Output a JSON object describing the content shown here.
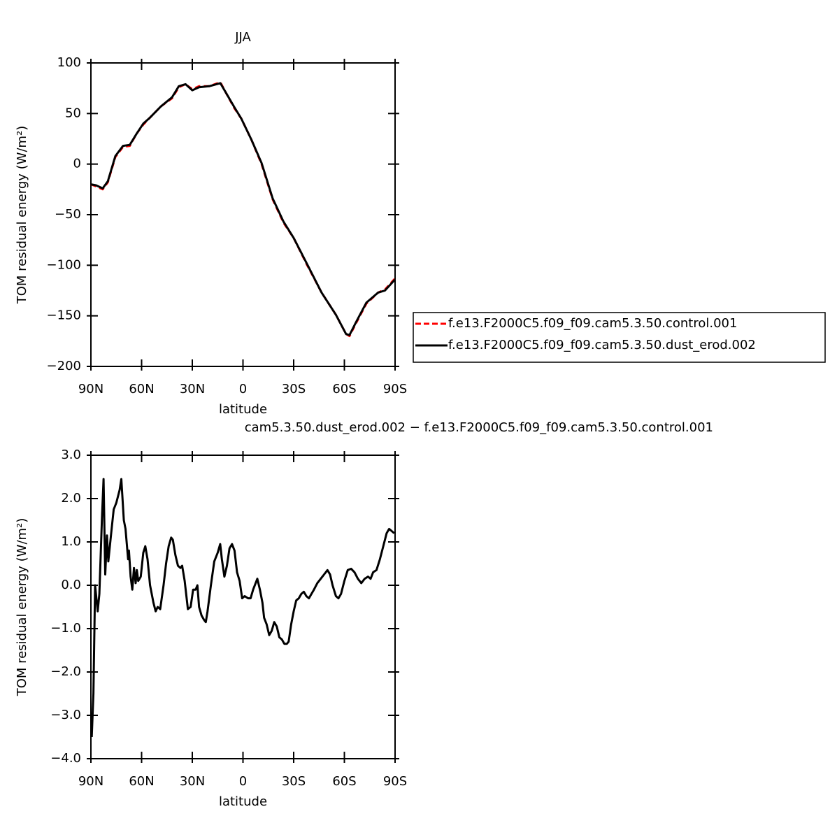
{
  "chart_data": [
    {
      "type": "line",
      "title": "JJA",
      "xlabel": "latitude",
      "ylabel": "TOM residual energy (W/m²)",
      "x": [
        90,
        87,
        83,
        80,
        75.5,
        71,
        67,
        63,
        59,
        55,
        48.6,
        42,
        38,
        34,
        30,
        26,
        20,
        13.4,
        10.6,
        5,
        1,
        -5,
        -11,
        -17.6,
        -24,
        -30,
        -38,
        -46.5,
        -55,
        -61,
        -63,
        -67,
        -73,
        -80,
        -84,
        -90
      ],
      "series": [
        {
          "name": "f.e13.F2000C5.f09_f09.cam5.3.50.control.001",
          "color": "#ff0000",
          "dash": true,
          "values": [
            -20,
            -22,
            -25,
            -18,
            7,
            17,
            18,
            30,
            39,
            46,
            57,
            65,
            76,
            79,
            74,
            77,
            77,
            81,
            72,
            55,
            45,
            24,
            0,
            -35,
            -58,
            -73,
            -100,
            -127,
            -149,
            -168,
            -170,
            -157,
            -138,
            -127,
            -124,
            -113
          ]
        },
        {
          "name": "f.e13.F2000C5.f09_f09.cam5.3.50.dust_erod.002",
          "color": "#000000",
          "dash": false,
          "values": [
            -20,
            -21,
            -24,
            -17,
            8,
            18,
            19,
            30,
            40,
            46,
            57,
            66,
            77,
            79,
            73,
            76,
            77,
            80,
            72,
            56,
            45,
            24,
            1,
            -34,
            -57,
            -73,
            -99,
            -127,
            -149,
            -168,
            -169,
            -156,
            -137,
            -127,
            -125,
            -114
          ]
        }
      ],
      "xlim": [
        90,
        -90
      ],
      "xticks": [
        {
          "value": 90,
          "label": "90N"
        },
        {
          "value": 60,
          "label": "60N"
        },
        {
          "value": 30,
          "label": "30N"
        },
        0,
        {
          "value": -30,
          "label": "30S"
        },
        {
          "value": -60,
          "label": "60S"
        },
        {
          "value": -90,
          "label": "90S"
        }
      ],
      "ylim": [
        -200,
        100
      ],
      "yticks": [
        {
          "value": -200,
          "label": "−200"
        },
        {
          "value": -150,
          "label": "−150"
        },
        {
          "value": -100,
          "label": "−100"
        },
        {
          "value": -50,
          "label": "−50"
        },
        0,
        50,
        100
      ],
      "legend": "right"
    },
    {
      "type": "line",
      "title": "cam5.3.50.dust_erod.002 − f.e13.F2000C5.f09_f09.cam5.3.50.control.001",
      "xlabel": "latitude",
      "ylabel": "TOM residual energy (W/m²)",
      "x": [
        89.5,
        88.5,
        87.5,
        86,
        85,
        83.5,
        82.5,
        81.5,
        80.5,
        79.7,
        78,
        76.5,
        75,
        73,
        72,
        70.5,
        69.5,
        68,
        67.5,
        66.5,
        65.5,
        64.5,
        63.5,
        62.8,
        62,
        60.5,
        59,
        57.8,
        56.5,
        55,
        53,
        51.7,
        50.5,
        49,
        47,
        45.5,
        44,
        42.5,
        41.5,
        40,
        38.5,
        37,
        36,
        34.5,
        32.6,
        31,
        29.5,
        28,
        27,
        26,
        24.5,
        23,
        22,
        21,
        19,
        17,
        15,
        13.5,
        12.5,
        11,
        9.5,
        8,
        6.5,
        5,
        3.5,
        2,
        0.5,
        -1,
        -3,
        -4.5,
        -6,
        -7.5,
        -8.5,
        -10,
        -11.5,
        -12.5,
        -14,
        -15.5,
        -17,
        -18.5,
        -20,
        -21.5,
        -23,
        -24.5,
        -26,
        -27,
        -28.5,
        -30,
        -31.5,
        -33,
        -34.5,
        -36,
        -37.5,
        -39,
        -40.5,
        -42,
        -44,
        -46,
        -48,
        -50,
        -51.5,
        -53,
        -55,
        -56.5,
        -58,
        -60,
        -62,
        -64,
        -66,
        -68,
        -70,
        -72,
        -74,
        -75.5,
        -77,
        -79,
        -81,
        -83,
        -85,
        -86.5,
        -88,
        -89.5
      ],
      "values": [
        -3.5,
        -2.5,
        0.0,
        -0.6,
        -0.2,
        1.5,
        2.45,
        0.25,
        1.15,
        0.55,
        1.2,
        1.75,
        1.9,
        2.2,
        2.45,
        1.5,
        1.3,
        0.6,
        0.8,
        0.2,
        -0.1,
        0.4,
        0.05,
        0.35,
        0.1,
        0.2,
        0.75,
        0.9,
        0.6,
        0.0,
        -0.4,
        -0.6,
        -0.5,
        -0.55,
        0.0,
        0.5,
        0.9,
        1.1,
        1.05,
        0.7,
        0.45,
        0.4,
        0.45,
        0.1,
        -0.55,
        -0.5,
        -0.1,
        -0.1,
        0.0,
        -0.5,
        -0.7,
        -0.8,
        -0.85,
        -0.6,
        0.0,
        0.55,
        0.75,
        0.95,
        0.6,
        0.2,
        0.45,
        0.85,
        0.95,
        0.8,
        0.3,
        0.1,
        -0.3,
        -0.25,
        -0.3,
        -0.3,
        -0.1,
        0.05,
        0.15,
        -0.1,
        -0.4,
        -0.75,
        -0.9,
        -1.15,
        -1.05,
        -0.85,
        -0.95,
        -1.2,
        -1.25,
        -1.35,
        -1.35,
        -1.3,
        -0.9,
        -0.6,
        -0.35,
        -0.3,
        -0.2,
        -0.15,
        -0.25,
        -0.3,
        -0.2,
        -0.1,
        0.05,
        0.15,
        0.25,
        0.35,
        0.25,
        0.0,
        -0.25,
        -0.3,
        -0.2,
        0.1,
        0.35,
        0.38,
        0.3,
        0.15,
        0.05,
        0.15,
        0.2,
        0.15,
        0.3,
        0.35,
        0.6,
        0.9,
        1.2,
        1.3,
        1.25,
        1.2
      ],
      "color": "#000000",
      "xlim": [
        90,
        -90
      ],
      "xticks": [
        {
          "value": 90,
          "label": "90N"
        },
        {
          "value": 60,
          "label": "60N"
        },
        {
          "value": 30,
          "label": "30N"
        },
        0,
        {
          "value": -30,
          "label": "30S"
        },
        {
          "value": -60,
          "label": "60S"
        },
        {
          "value": -90,
          "label": "90S"
        }
      ],
      "ylim": [
        -4,
        3
      ],
      "yticks": [
        {
          "value": -4,
          "label": "−4.0"
        },
        {
          "value": -3,
          "label": "−3.0"
        },
        {
          "value": -2,
          "label": "−2.0"
        },
        {
          "value": -1,
          "label": "−1.0"
        },
        {
          "value": 0,
          "label": "0.0"
        },
        {
          "value": 1,
          "label": "1.0"
        },
        {
          "value": 2,
          "label": "2.0"
        },
        {
          "value": 3,
          "label": "3.0"
        }
      ]
    }
  ]
}
